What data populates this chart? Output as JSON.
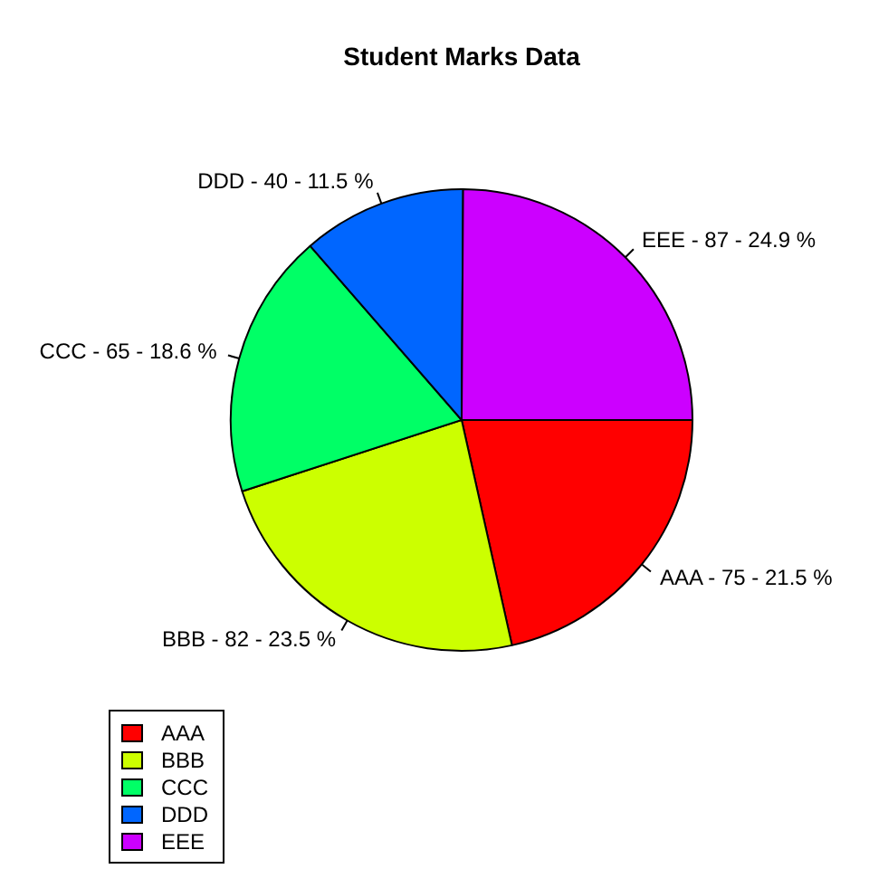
{
  "chart_data": {
    "type": "pie",
    "title": "Student Marks Data",
    "categories": [
      "AAA",
      "BBB",
      "CCC",
      "DDD",
      "EEE"
    ],
    "values": [
      21.5,
      23.5,
      18.6,
      11.5,
      24.9
    ],
    "colors": [
      "#ff0000",
      "#ccff00",
      "#00ff66",
      "#0066ff",
      "#cc00ff"
    ],
    "annotations": [
      "AAA - 75 - 21.5 %",
      "BBB - 82 - 23.5 %",
      "CCC - 65 - 18.6 %",
      "DDD - 40 - 11.5 %",
      "EEE - 87 - 24.9 %"
    ],
    "legend": "bottom left"
  }
}
